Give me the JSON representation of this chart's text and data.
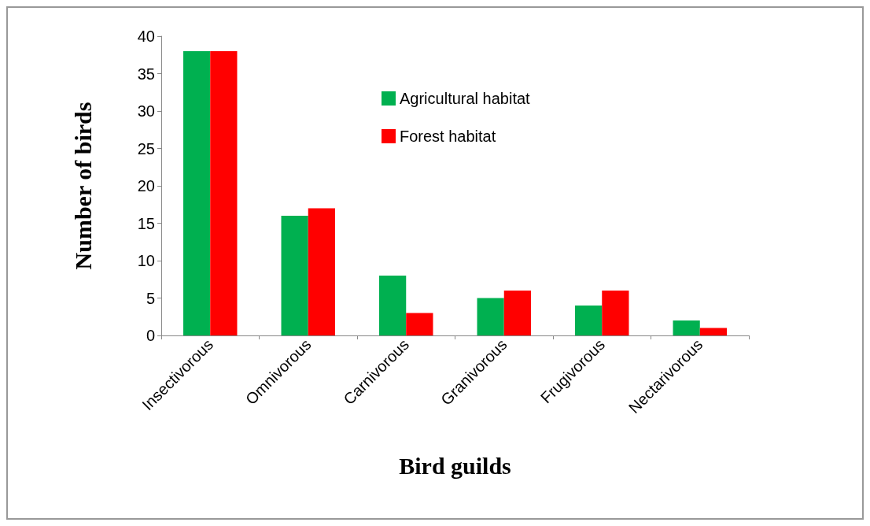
{
  "chart_data": {
    "type": "bar",
    "xlabel": "Bird guilds",
    "ylabel": "Number of birds",
    "categories": [
      "Insectivorous",
      "Omnivorous",
      "Carnivorous",
      "Granivorous",
      "Frugivorous",
      "Nectarivorous"
    ],
    "series": [
      {
        "name": "Agricultural habitat",
        "color": "#00b050",
        "values": [
          38,
          16,
          8,
          5,
          4,
          2
        ]
      },
      {
        "name": "Forest habitat",
        "color": "#ff0000",
        "values": [
          38,
          17,
          3,
          6,
          6,
          1
        ]
      }
    ],
    "ylim": [
      0,
      40
    ],
    "yticks": [
      0,
      5,
      10,
      15,
      20,
      25,
      30,
      35,
      40
    ],
    "grid": false,
    "legend": "top"
  }
}
